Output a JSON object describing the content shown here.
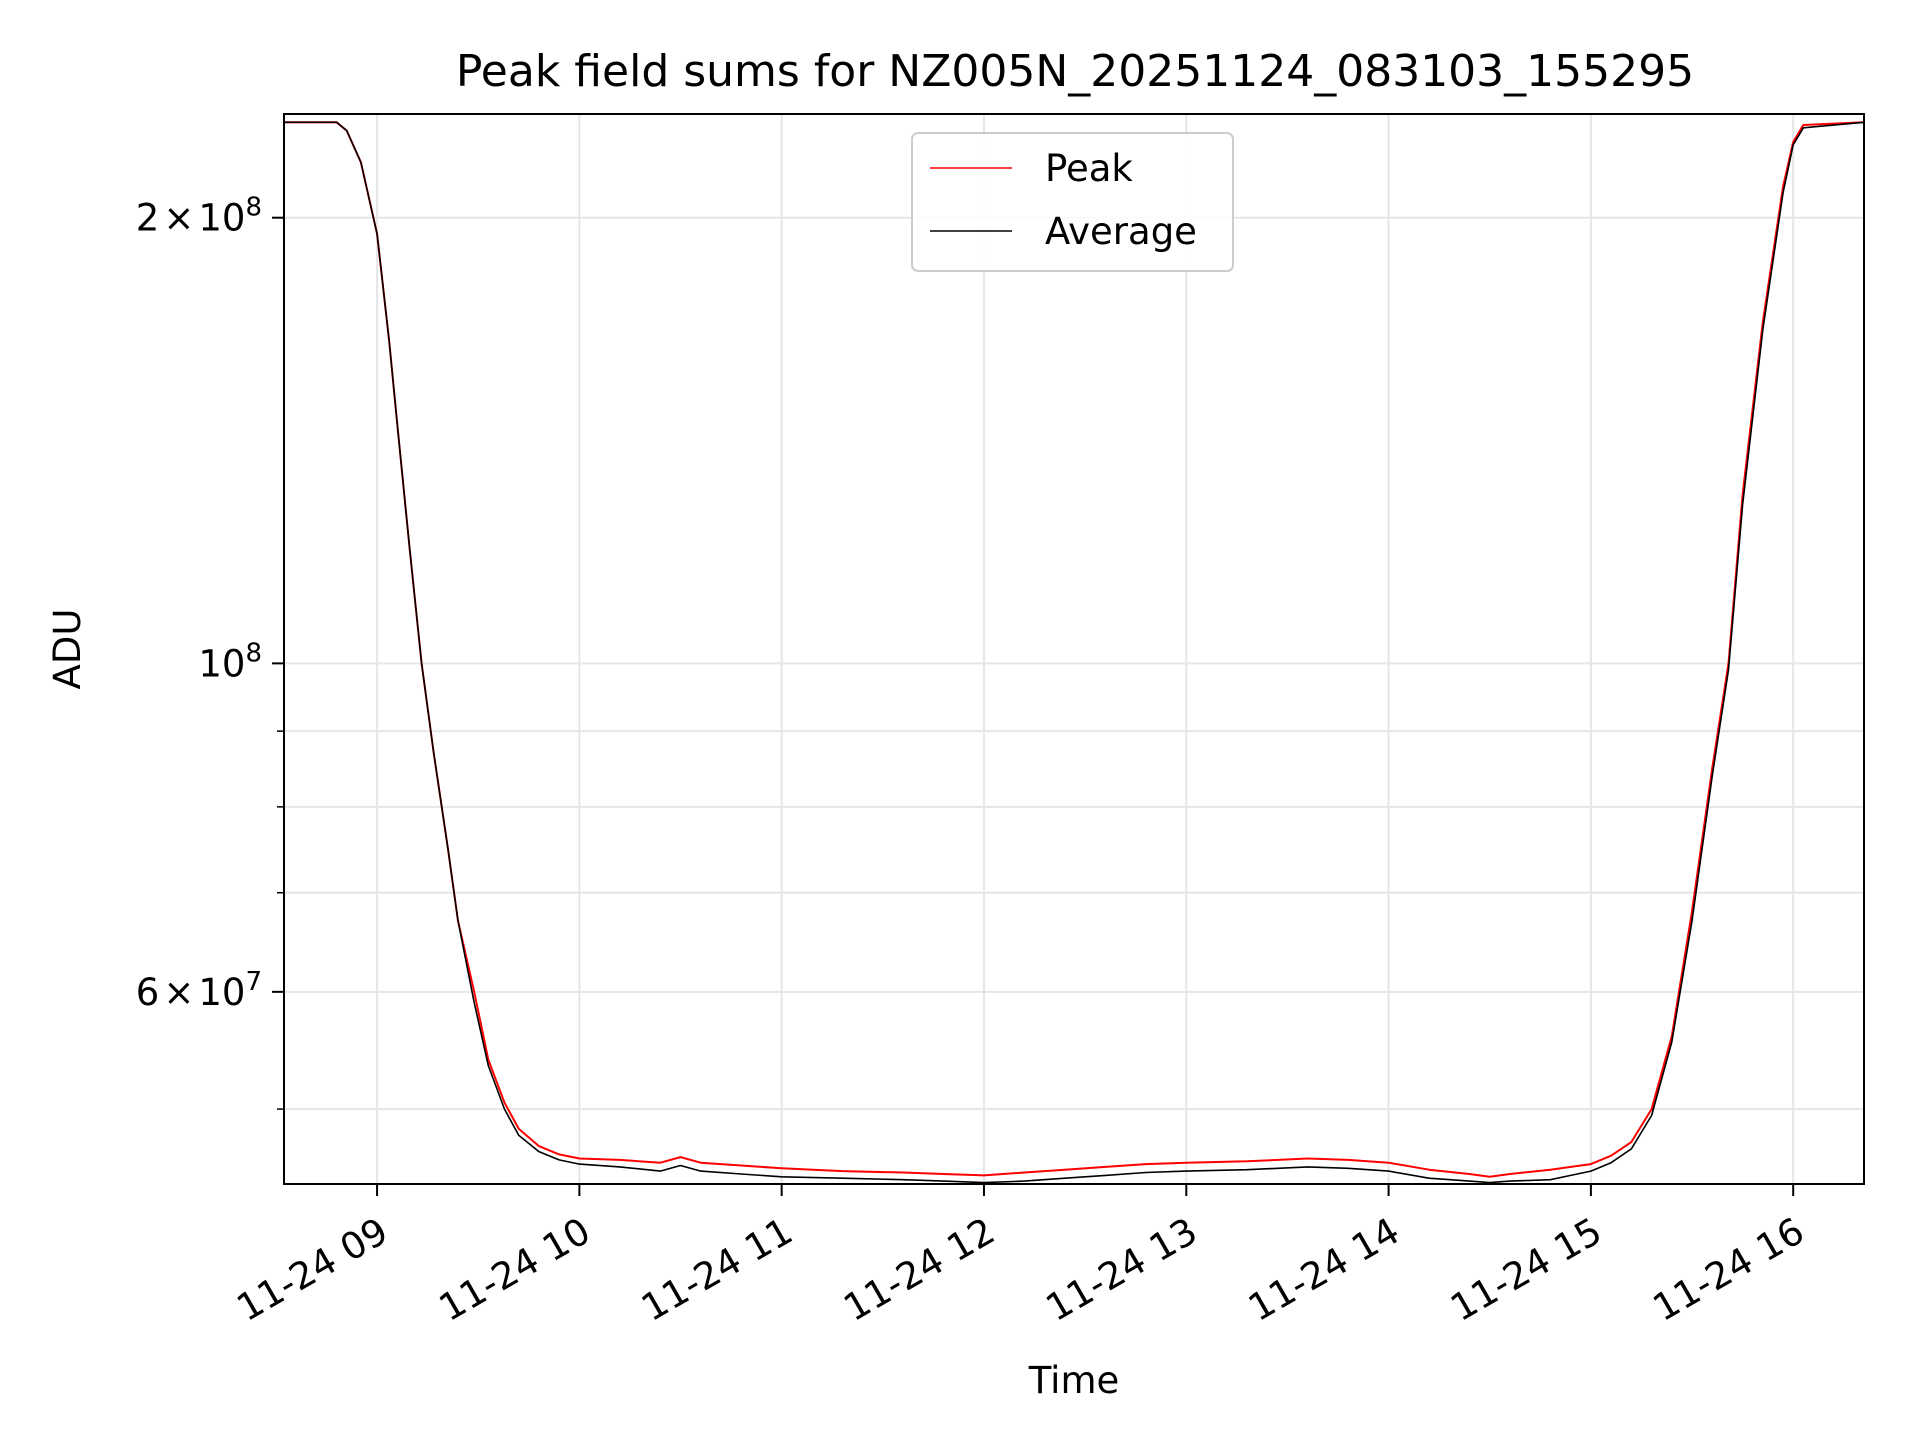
{
  "chart_data": {
    "type": "line",
    "title": "Peak field sums for NZ005N_20251124_083103_155295",
    "xlabel": "Time",
    "ylabel": "ADU",
    "yscale": "log",
    "xlim_hours": [
      8.54,
      16.35
    ],
    "ylim": [
      44500000,
      235000000
    ],
    "grid": true,
    "legend_location": "upper center",
    "x_ticks": [
      {
        "hour": 9,
        "label": "11-24 09"
      },
      {
        "hour": 10,
        "label": "11-24 10"
      },
      {
        "hour": 11,
        "label": "11-24 11"
      },
      {
        "hour": 12,
        "label": "11-24 12"
      },
      {
        "hour": 13,
        "label": "11-24 13"
      },
      {
        "hour": 14,
        "label": "11-24 14"
      },
      {
        "hour": 15,
        "label": "11-24 15"
      },
      {
        "hour": 16,
        "label": "11-24 16"
      }
    ],
    "y_major_ticks": [
      {
        "value": 200000000,
        "mant": "2",
        "times": "×",
        "base": "10",
        "exp": "8"
      },
      {
        "value": 100000000,
        "mant": "",
        "times": "",
        "base": "10",
        "exp": "8"
      },
      {
        "value": 60000000,
        "mant": "6",
        "times": "×",
        "base": "10",
        "exp": "7"
      }
    ],
    "y_minor_ticks": [
      50000000,
      70000000,
      80000000,
      90000000
    ],
    "series": [
      {
        "name": "Peak",
        "color": "#ff0000",
        "x_hours": [
          8.54,
          8.8,
          8.85,
          8.92,
          9.0,
          9.06,
          9.1,
          9.16,
          9.22,
          9.28,
          9.35,
          9.4,
          9.48,
          9.55,
          9.63,
          9.7,
          9.8,
          9.9,
          10.0,
          10.2,
          10.4,
          10.5,
          10.6,
          10.8,
          11.0,
          11.3,
          11.6,
          11.8,
          12.0,
          12.2,
          12.4,
          12.6,
          12.8,
          13.0,
          13.3,
          13.6,
          13.8,
          14.0,
          14.2,
          14.4,
          14.5,
          14.6,
          14.8,
          14.9,
          15.0,
          15.1,
          15.2,
          15.3,
          15.4,
          15.5,
          15.6,
          15.68,
          15.75,
          15.85,
          15.95,
          16.0,
          16.05,
          16.35
        ],
        "values": [
          232000000,
          232000000,
          229000000,
          218000000,
          195000000,
          165000000,
          145000000,
          120000000,
          100000000,
          87000000,
          75000000,
          67000000,
          60000000,
          54000000,
          50500000,
          48500000,
          47200000,
          46600000,
          46300000,
          46200000,
          46000000,
          46400000,
          46000000,
          45800000,
          45600000,
          45400000,
          45300000,
          45200000,
          45100000,
          45300000,
          45500000,
          45700000,
          45900000,
          46000000,
          46100000,
          46300000,
          46200000,
          46000000,
          45500000,
          45200000,
          45000000,
          45200000,
          45500000,
          45700000,
          45900000,
          46500000,
          47500000,
          50000000,
          56000000,
          68000000,
          85000000,
          100000000,
          130000000,
          170000000,
          210000000,
          225000000,
          231000000,
          232000000
        ]
      },
      {
        "name": "Average",
        "color": "#000000",
        "x_hours": [
          8.54,
          8.8,
          8.85,
          8.92,
          9.0,
          9.06,
          9.1,
          9.16,
          9.22,
          9.28,
          9.35,
          9.4,
          9.48,
          9.55,
          9.63,
          9.7,
          9.8,
          9.9,
          10.0,
          10.2,
          10.4,
          10.5,
          10.6,
          10.8,
          11.0,
          11.3,
          11.6,
          11.8,
          12.0,
          12.2,
          12.4,
          12.6,
          12.8,
          13.0,
          13.3,
          13.6,
          13.8,
          14.0,
          14.2,
          14.4,
          14.5,
          14.6,
          14.8,
          14.9,
          15.0,
          15.1,
          15.2,
          15.3,
          15.4,
          15.5,
          15.6,
          15.68,
          15.75,
          15.85,
          15.95,
          16.0,
          16.05,
          16.35
        ],
        "values": [
          232000000,
          232000000,
          229000000,
          218000000,
          195000000,
          165000000,
          145000000,
          120000000,
          100000000,
          87000000,
          75000000,
          67000000,
          59000000,
          53500000,
          50000000,
          48000000,
          46800000,
          46200000,
          45900000,
          45700000,
          45400000,
          45800000,
          45400000,
          45200000,
          45000000,
          44900000,
          44800000,
          44700000,
          44600000,
          44700000,
          44900000,
          45100000,
          45300000,
          45400000,
          45500000,
          45700000,
          45600000,
          45400000,
          44900000,
          44700000,
          44600000,
          44700000,
          44800000,
          45100000,
          45400000,
          46000000,
          47000000,
          49500000,
          55500000,
          67000000,
          84000000,
          99000000,
          128000000,
          168000000,
          208000000,
          224000000,
          230000000,
          232000000
        ]
      }
    ]
  }
}
